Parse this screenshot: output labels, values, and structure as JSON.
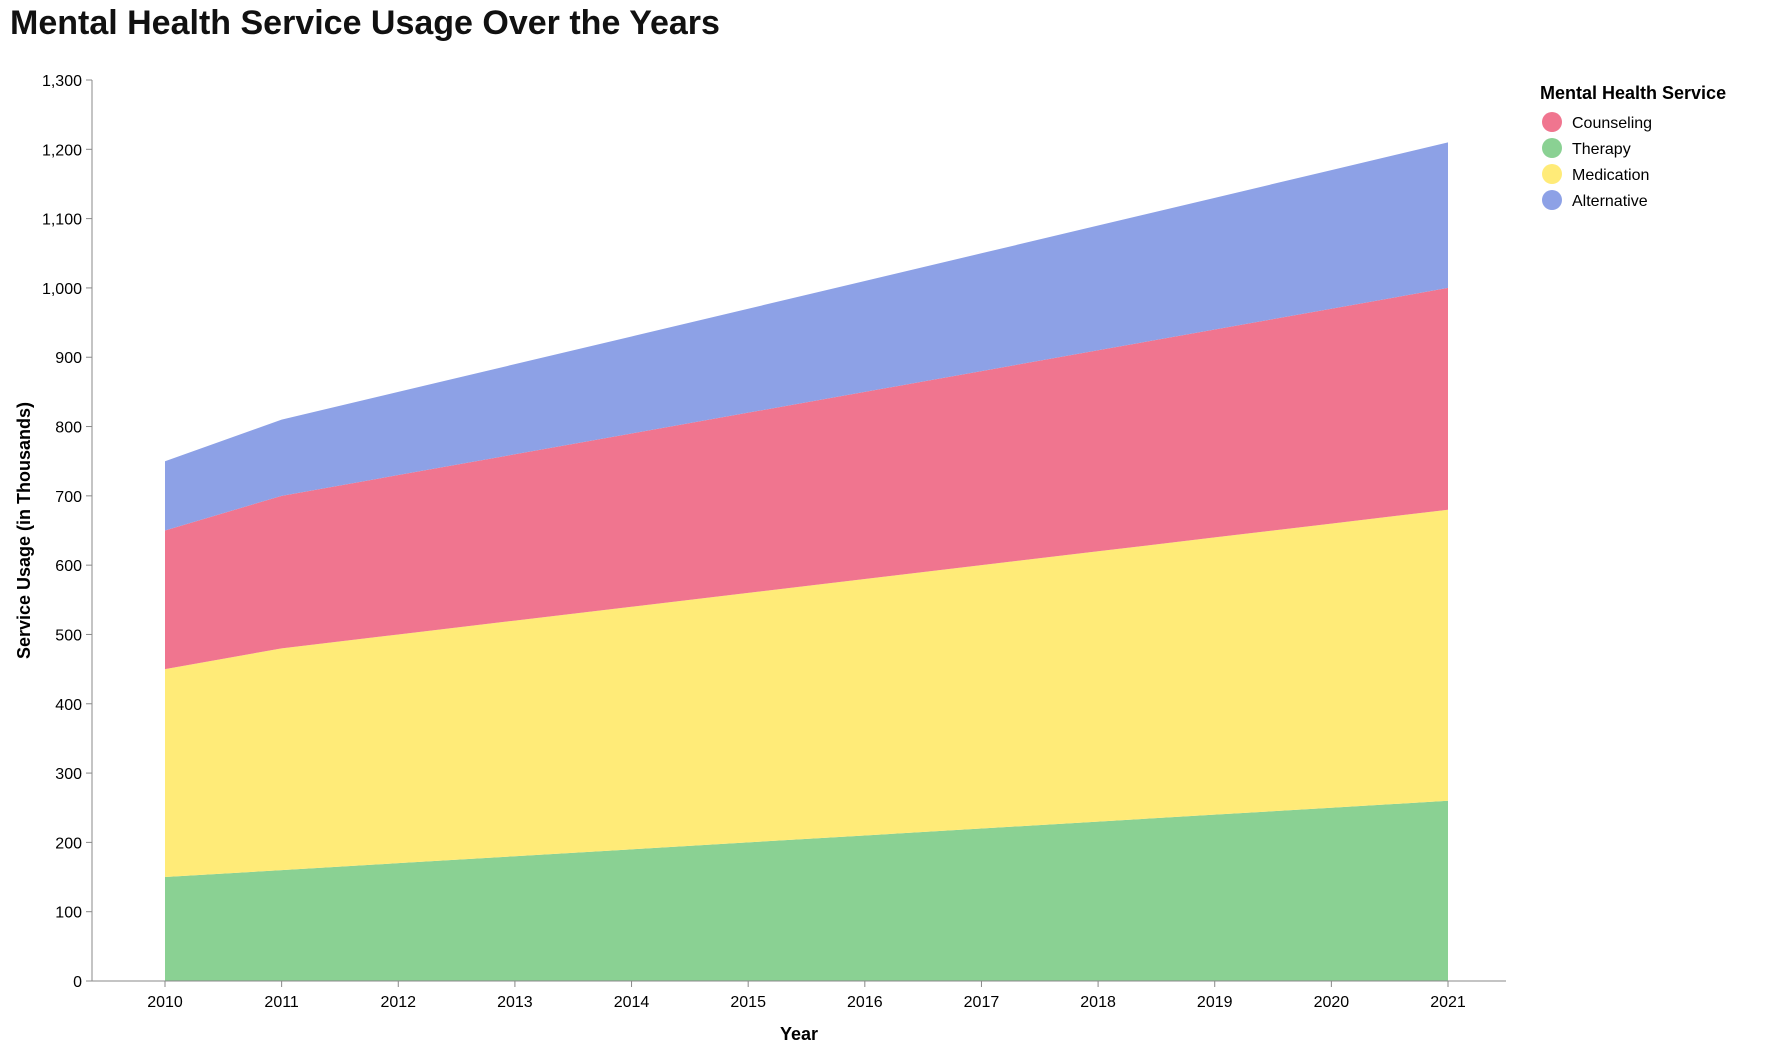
{
  "chart_data": {
    "type": "area",
    "stacked": true,
    "title": "Mental Health Service Usage Over the Years",
    "xlabel": "Year",
    "ylabel": "Service Usage (in Thousands)",
    "x": [
      2010,
      2011,
      2012,
      2013,
      2014,
      2015,
      2016,
      2017,
      2018,
      2019,
      2020,
      2021
    ],
    "ylim": [
      0,
      1300
    ],
    "yticks": [
      0,
      100,
      200,
      300,
      400,
      500,
      600,
      700,
      800,
      900,
      1000,
      1100,
      1200,
      1300
    ],
    "grid": false,
    "legend": {
      "title": "Mental Health Service",
      "position": "top-right"
    },
    "series": [
      {
        "name": "Therapy",
        "color": "#8ad193",
        "values": [
          150,
          160,
          170,
          180,
          190,
          200,
          210,
          220,
          230,
          240,
          250,
          260
        ]
      },
      {
        "name": "Medication",
        "color": "#ffeb78",
        "values": [
          300,
          320,
          330,
          340,
          350,
          360,
          370,
          380,
          390,
          400,
          410,
          420
        ]
      },
      {
        "name": "Counseling",
        "color": "#f0758f",
        "values": [
          200,
          220,
          230,
          240,
          250,
          260,
          270,
          280,
          290,
          300,
          310,
          320
        ]
      },
      {
        "name": "Alternative",
        "color": "#8da1e6",
        "values": [
          100,
          110,
          120,
          130,
          140,
          150,
          160,
          170,
          180,
          190,
          200,
          210
        ]
      }
    ],
    "legend_order": [
      "Counseling",
      "Therapy",
      "Medication",
      "Alternative"
    ]
  }
}
